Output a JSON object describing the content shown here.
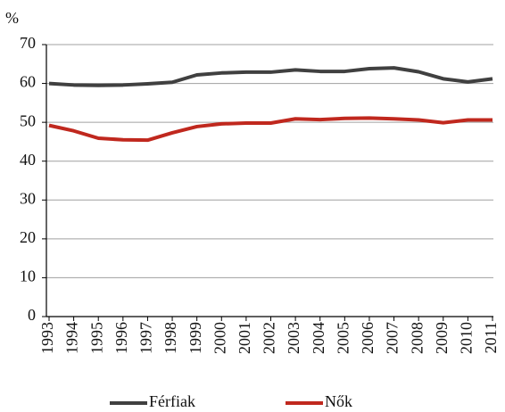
{
  "chart_data": {
    "type": "line",
    "y_label": "%",
    "categories": [
      "1993",
      "1994",
      "1995",
      "1996",
      "1997",
      "1998",
      "1999",
      "2000",
      "2001",
      "2002",
      "2003",
      "2004",
      "2005",
      "2006",
      "2007",
      "2008",
      "2009",
      "2010",
      "2011"
    ],
    "series": [
      {
        "name": "Férfiak",
        "color": "#404040",
        "values": [
          60.0,
          59.6,
          59.5,
          59.6,
          59.9,
          60.3,
          62.2,
          62.7,
          62.9,
          62.9,
          63.5,
          63.1,
          63.1,
          63.8,
          64.0,
          63.0,
          61.2,
          60.4,
          61.2
        ]
      },
      {
        "name": "Nők",
        "color": "#c0281e",
        "values": [
          49.2,
          47.8,
          45.9,
          45.5,
          45.4,
          47.3,
          48.9,
          49.6,
          49.8,
          49.8,
          50.9,
          50.7,
          51.0,
          51.1,
          50.9,
          50.6,
          49.9,
          50.6,
          50.6
        ]
      }
    ],
    "ylim": [
      0,
      70
    ],
    "yticks": [
      0,
      10,
      20,
      30,
      40,
      50,
      60,
      70
    ],
    "grid": true,
    "legend": "bottom"
  }
}
